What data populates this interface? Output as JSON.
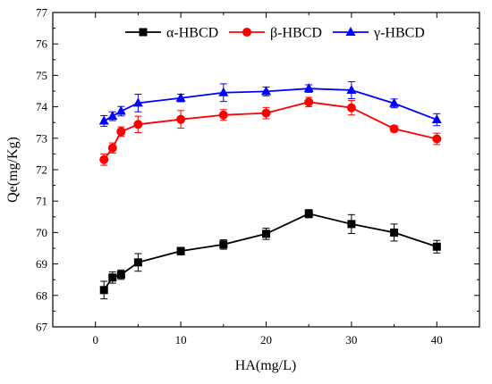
{
  "chart_data": {
    "type": "line",
    "title": "",
    "xlabel": "HA(mg/L)",
    "ylabel": "Qe(mg/Kg)",
    "xlim": [
      -5,
      45
    ],
    "ylim": [
      67,
      77
    ],
    "xticks": [
      0,
      10,
      20,
      30,
      40
    ],
    "yticks": [
      67,
      68,
      69,
      70,
      71,
      72,
      73,
      74,
      75,
      76,
      77
    ],
    "grid": false,
    "legend_position": "top",
    "x": [
      1,
      2,
      3,
      5,
      10,
      15,
      20,
      25,
      30,
      35,
      40
    ],
    "series": [
      {
        "name": "α-HBCD",
        "color": "#000000",
        "marker": "square",
        "values": [
          68.17,
          68.57,
          68.66,
          69.05,
          69.41,
          69.62,
          69.96,
          70.6,
          70.27,
          70.0,
          69.55
        ],
        "errors": [
          0.28,
          0.18,
          0.15,
          0.28,
          0.12,
          0.15,
          0.18,
          0.13,
          0.3,
          0.27,
          0.2
        ]
      },
      {
        "name": "β-HBCD",
        "color": "#ff0000",
        "marker": "circle",
        "values": [
          72.32,
          72.69,
          73.21,
          73.44,
          73.6,
          73.74,
          73.8,
          74.15,
          73.97,
          73.3,
          72.98
        ],
        "errors": [
          0.18,
          0.16,
          0.15,
          0.26,
          0.28,
          0.17,
          0.18,
          0.15,
          0.23,
          0.1,
          0.18
        ]
      },
      {
        "name": "γ-HBCD",
        "color": "#0000ff",
        "marker": "triangle",
        "values": [
          73.55,
          73.7,
          73.86,
          74.12,
          74.28,
          74.45,
          74.49,
          74.58,
          74.53,
          74.11,
          73.59
        ],
        "errors": [
          0.17,
          0.14,
          0.15,
          0.28,
          0.12,
          0.28,
          0.14,
          0.12,
          0.27,
          0.14,
          0.19
        ]
      }
    ]
  }
}
